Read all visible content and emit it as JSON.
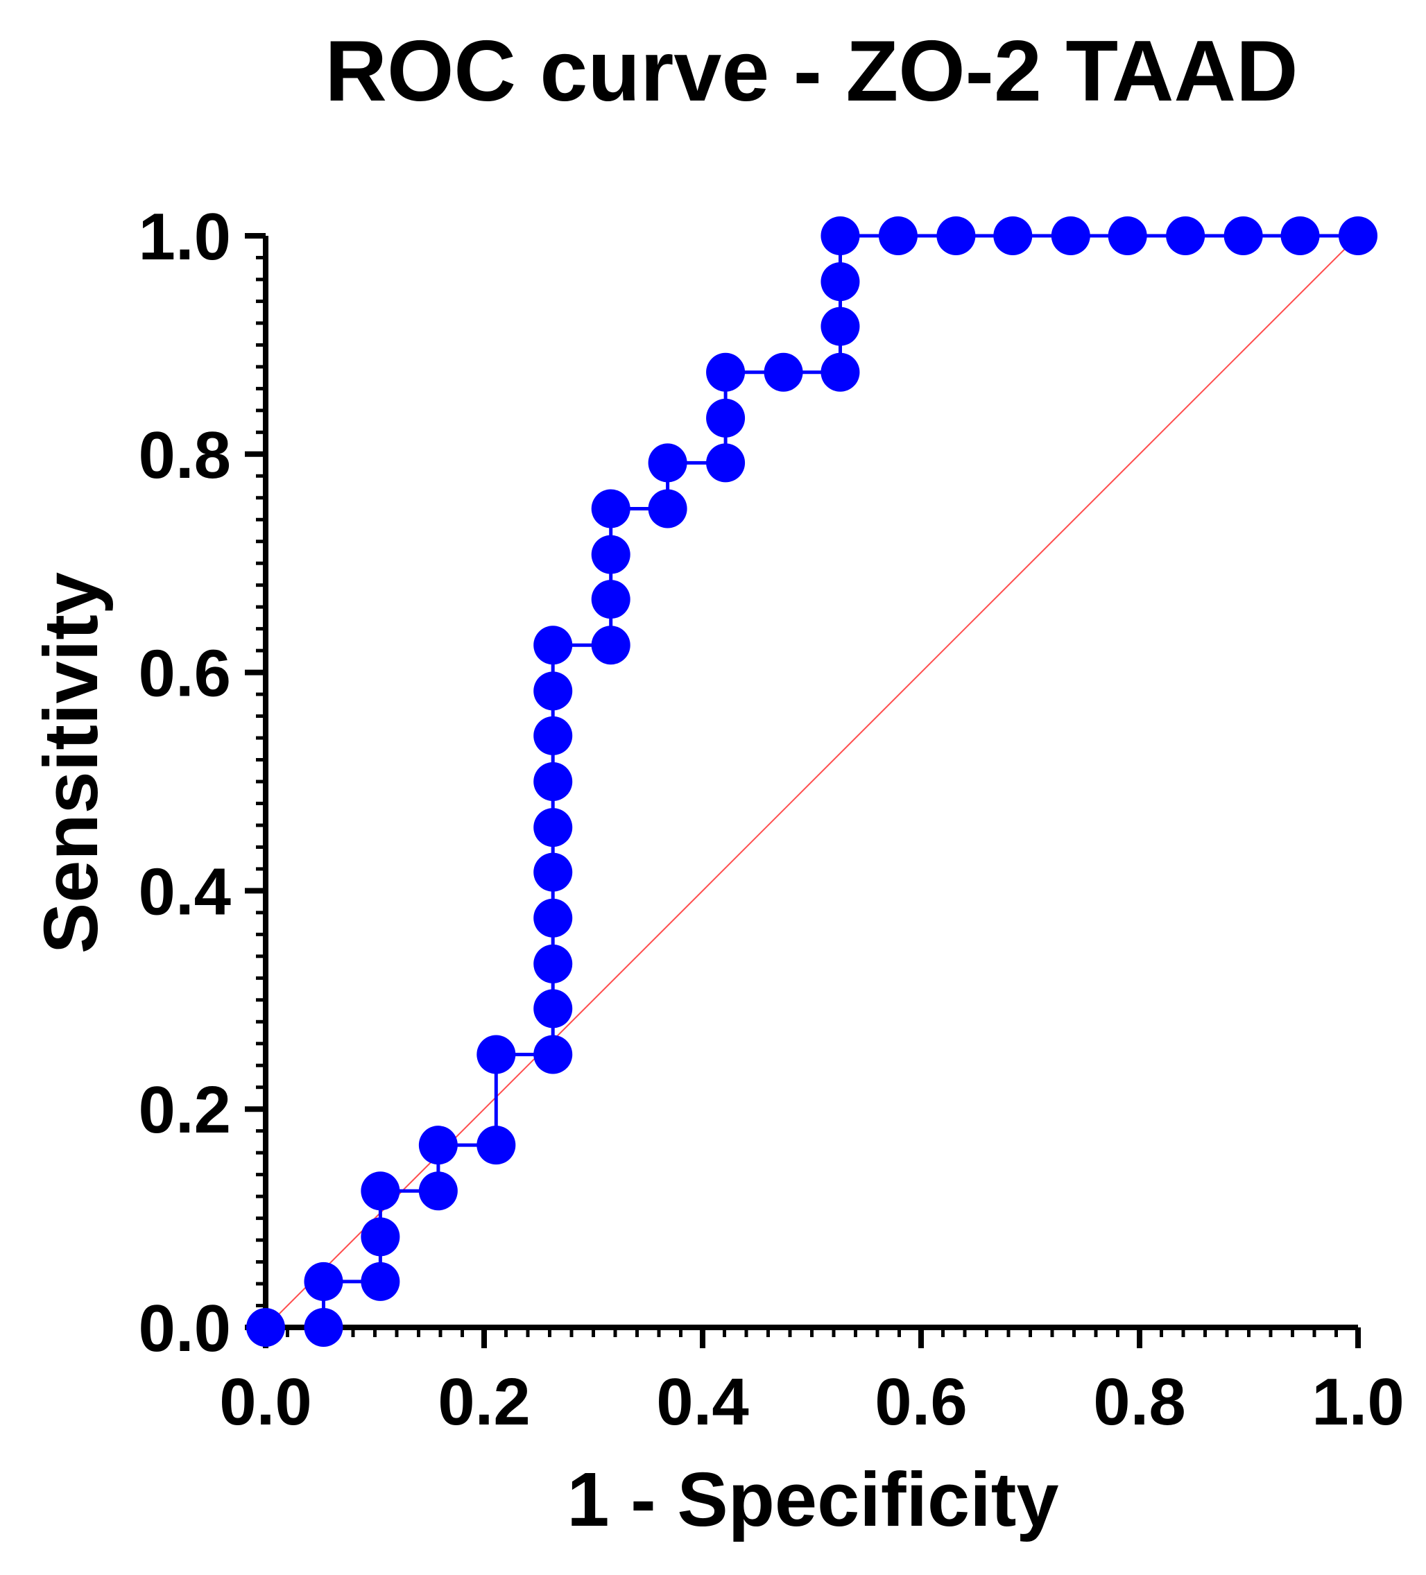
{
  "chart_data": {
    "type": "line",
    "title": "ROC curve - ZO-2 TAAD",
    "xlabel": "1 - Specificity",
    "ylabel": "Sensitivity",
    "xlim": [
      0,
      1
    ],
    "ylim": [
      0,
      1
    ],
    "x_ticks": [
      "0.0",
      "0.2",
      "0.4",
      "0.6",
      "0.8",
      "1.0"
    ],
    "y_ticks": [
      "0.0",
      "0.2",
      "0.4",
      "0.6",
      "0.8",
      "1.0"
    ],
    "grid": false,
    "legend": "none",
    "colors": {
      "series": "#0000ff",
      "reference": "#ff4d4d",
      "axis": "#000000"
    },
    "series": [
      {
        "name": "ROC curve",
        "x": [
          0.0,
          0.053,
          0.053,
          0.105,
          0.105,
          0.105,
          0.158,
          0.158,
          0.211,
          0.211,
          0.263,
          0.263,
          0.263,
          0.263,
          0.263,
          0.263,
          0.263,
          0.263,
          0.263,
          0.263,
          0.316,
          0.316,
          0.316,
          0.316,
          0.368,
          0.368,
          0.421,
          0.421,
          0.421,
          0.474,
          0.526,
          0.526,
          0.526,
          0.526,
          0.579,
          0.632,
          0.684,
          0.737,
          0.789,
          0.842,
          0.895,
          0.947,
          1.0
        ],
        "y": [
          0.0,
          0.0,
          0.042,
          0.042,
          0.083,
          0.125,
          0.125,
          0.167,
          0.167,
          0.25,
          0.25,
          0.292,
          0.333,
          0.375,
          0.417,
          0.458,
          0.5,
          0.542,
          0.583,
          0.625,
          0.625,
          0.667,
          0.708,
          0.75,
          0.75,
          0.792,
          0.792,
          0.833,
          0.875,
          0.875,
          0.875,
          0.917,
          0.958,
          1.0,
          1.0,
          1.0,
          1.0,
          1.0,
          1.0,
          1.0,
          1.0,
          1.0,
          1.0
        ]
      },
      {
        "name": "Reference line",
        "x": [
          0,
          1
        ],
        "y": [
          0,
          1
        ]
      }
    ]
  }
}
